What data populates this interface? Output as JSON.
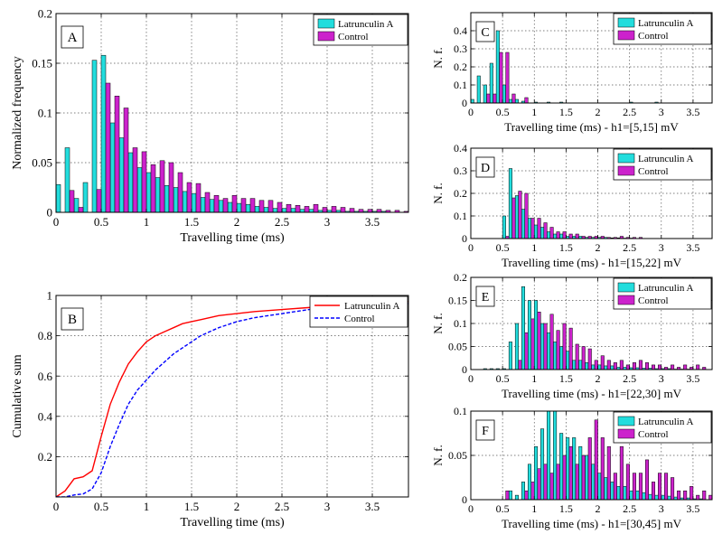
{
  "colors": {
    "latrunculin": "#22DDDD",
    "control": "#CC22CC",
    "line_latrunculin": "#FF0000",
    "line_control": "#0000FF"
  },
  "chart_data": [
    {
      "id": "A",
      "type": "bar",
      "panel_label": "A",
      "xlabel": "Travelling time (ms)",
      "ylabel": "Normalized frequency",
      "xlim": [
        0,
        3.9
      ],
      "ylim": [
        0,
        0.2
      ],
      "xticks": [
        0,
        0.5,
        1,
        1.5,
        2,
        2.5,
        3,
        3.5
      ],
      "xtick_labels": [
        "0",
        "0.5",
        "1",
        "1.5",
        "2",
        "2.5",
        "3",
        "3.5"
      ],
      "yticks": [
        0,
        0.05,
        0.1,
        0.15,
        0.2
      ],
      "ytick_labels": [
        "0",
        "0.05",
        "0.1",
        "0.15",
        "0.2"
      ],
      "legend": [
        "Latrunculin A",
        "Control"
      ],
      "bin_start": 0.05,
      "bin_width": 0.1,
      "series": [
        {
          "name": "Latrunculin A",
          "values": [
            0.028,
            0.065,
            0.014,
            0.03,
            0.153,
            0.158,
            0.09,
            0.075,
            0.06,
            0.045,
            0.04,
            0.035,
            0.027,
            0.025,
            0.021,
            0.019,
            0.015,
            0.013,
            0.012,
            0.01,
            0.009,
            0.008,
            0.006,
            0.005,
            0.004,
            0.004,
            0.004,
            0.003,
            0.003,
            0.002,
            0.002,
            0.002,
            0.001,
            0.001,
            0.001,
            0.001,
            0.001,
            0.0,
            0.0
          ]
        },
        {
          "name": "Control",
          "values": [
            0.0,
            0.022,
            0.005,
            0.0,
            0.023,
            0.13,
            0.117,
            0.105,
            0.065,
            0.061,
            0.048,
            0.052,
            0.05,
            0.04,
            0.03,
            0.029,
            0.02,
            0.017,
            0.014,
            0.017,
            0.014,
            0.014,
            0.012,
            0.012,
            0.01,
            0.008,
            0.007,
            0.006,
            0.008,
            0.005,
            0.006,
            0.005,
            0.004,
            0.003,
            0.003,
            0.003,
            0.002,
            0.002,
            0.001
          ]
        }
      ]
    },
    {
      "id": "B",
      "type": "line",
      "panel_label": "B",
      "xlabel": "Travelling time (ms)",
      "ylabel": "Cumulative sum",
      "xlim": [
        0,
        3.9
      ],
      "ylim": [
        0,
        1
      ],
      "xticks": [
        0,
        0.5,
        1,
        1.5,
        2,
        2.5,
        3,
        3.5
      ],
      "xtick_labels": [
        "0",
        "0.5",
        "1",
        "1.5",
        "2",
        "2.5",
        "3",
        "3.5"
      ],
      "yticks": [
        0.2,
        0.4,
        0.6,
        0.8,
        1
      ],
      "ytick_labels": [
        "0.2",
        "0.4",
        "0.6",
        "0.8",
        "1"
      ],
      "legend": [
        "Latrunculin A",
        "Control"
      ],
      "series": [
        {
          "name": "Latrunculin A",
          "style": "solid",
          "x": [
            0,
            0.1,
            0.2,
            0.3,
            0.4,
            0.5,
            0.6,
            0.7,
            0.8,
            0.9,
            1.0,
            1.1,
            1.2,
            1.3,
            1.4,
            1.5,
            1.6,
            1.7,
            1.8,
            2.0,
            2.2,
            2.5,
            2.8,
            3.1,
            3.5,
            3.9
          ],
          "y": [
            0.0,
            0.03,
            0.09,
            0.1,
            0.13,
            0.3,
            0.46,
            0.57,
            0.66,
            0.72,
            0.77,
            0.8,
            0.82,
            0.84,
            0.86,
            0.87,
            0.88,
            0.89,
            0.9,
            0.91,
            0.92,
            0.93,
            0.94,
            0.95,
            0.96,
            0.97
          ]
        },
        {
          "name": "Control",
          "style": "dashed",
          "x": [
            0,
            0.1,
            0.2,
            0.3,
            0.4,
            0.5,
            0.6,
            0.7,
            0.8,
            0.9,
            1.0,
            1.1,
            1.2,
            1.3,
            1.4,
            1.5,
            1.6,
            1.7,
            1.8,
            2.0,
            2.2,
            2.5,
            2.8,
            3.1,
            3.5,
            3.9
          ],
          "y": [
            0.0,
            0.0,
            0.01,
            0.015,
            0.04,
            0.12,
            0.25,
            0.36,
            0.46,
            0.53,
            0.58,
            0.63,
            0.67,
            0.71,
            0.74,
            0.77,
            0.8,
            0.82,
            0.84,
            0.87,
            0.89,
            0.91,
            0.93,
            0.94,
            0.95,
            0.96
          ]
        }
      ]
    },
    {
      "id": "C",
      "type": "bar",
      "panel_label": "C",
      "xlabel": "Travelling time (ms) - h1=[5,15] mV",
      "ylabel": "N. f.",
      "xlim": [
        0,
        3.8
      ],
      "ylim": [
        0,
        0.5
      ],
      "xticks": [
        0,
        0.5,
        1,
        1.5,
        2,
        2.5,
        3,
        3.5
      ],
      "xtick_labels": [
        "0",
        "0.5",
        "1",
        "1.5",
        "2",
        "2.5",
        "3",
        "3.5"
      ],
      "yticks": [
        0,
        0.1,
        0.2,
        0.3,
        0.4
      ],
      "ytick_labels": [
        "0",
        "0.1",
        "0.2",
        "0.3",
        "0.4"
      ],
      "legend": [
        "Latrunculin A",
        "Control"
      ],
      "bin_start": 0.05,
      "bin_width": 0.1,
      "series": [
        {
          "name": "Latrunculin A",
          "values": [
            0.02,
            0.15,
            0.1,
            0.22,
            0.4,
            0.1,
            0.02,
            0.02,
            0.01,
            0.0,
            0.005,
            0.0,
            0.005,
            0.0,
            0.005,
            0.0,
            0.0,
            0.0,
            0.0,
            0.0,
            0.0,
            0.0,
            0.0,
            0.0,
            0.0,
            0.005,
            0.0,
            0.0,
            0.0,
            0.005,
            0.0,
            0.0,
            0.0,
            0.0,
            0.0,
            0.0,
            0.0,
            0.0
          ]
        },
        {
          "name": "Control",
          "values": [
            0.0,
            0.0,
            0.05,
            0.05,
            0.28,
            0.28,
            0.05,
            0.0,
            0.03,
            0.0,
            0.0,
            0.0,
            0.0,
            0.0,
            0.0,
            0.0,
            0.0,
            0.0,
            0.0,
            0.0,
            0.0,
            0.0,
            0.0,
            0.0,
            0.0,
            0.0,
            0.0,
            0.0,
            0.0,
            0.0,
            0.0,
            0.0,
            0.0,
            0.0,
            0.0,
            0.0,
            0.0,
            0.0
          ]
        }
      ]
    },
    {
      "id": "D",
      "type": "bar",
      "panel_label": "D",
      "xlabel": "Travelling time (ms) - h1=[15,22] mV",
      "ylabel": "N. f.",
      "xlim": [
        0,
        3.8
      ],
      "ylim": [
        0,
        0.4
      ],
      "xticks": [
        0,
        0.5,
        1,
        1.5,
        2,
        2.5,
        3,
        3.5
      ],
      "xtick_labels": [
        "0",
        "0.5",
        "1",
        "1.5",
        "2",
        "2.5",
        "3",
        "3.5"
      ],
      "yticks": [
        0,
        0.1,
        0.2,
        0.3,
        0.4
      ],
      "ytick_labels": [
        "0",
        "0.1",
        "0.2",
        "0.3",
        "0.4"
      ],
      "legend": [
        "Latrunculin A",
        "Control"
      ],
      "bin_start": 0.05,
      "bin_width": 0.1,
      "series": [
        {
          "name": "Latrunculin A",
          "values": [
            0.0,
            0.0,
            0.0,
            0.0,
            0.0,
            0.1,
            0.31,
            0.19,
            0.13,
            0.09,
            0.06,
            0.05,
            0.03,
            0.02,
            0.02,
            0.01,
            0.01,
            0.01,
            0.005,
            0.005,
            0.005,
            0.005,
            0.003,
            0.003,
            0.002,
            0.002,
            0.0,
            0.0,
            0.0,
            0.0,
            0.0,
            0.0,
            0.0,
            0.0,
            0.0,
            0.0,
            0.0,
            0.0
          ]
        },
        {
          "name": "Control",
          "values": [
            0.0,
            0.0,
            0.0,
            0.0,
            0.0,
            0.01,
            0.18,
            0.21,
            0.2,
            0.09,
            0.09,
            0.07,
            0.05,
            0.03,
            0.03,
            0.02,
            0.02,
            0.01,
            0.01,
            0.01,
            0.01,
            0.005,
            0.005,
            0.01,
            0.005,
            0.005,
            0.005,
            0.0,
            0.0,
            0.0,
            0.0,
            0.0,
            0.0,
            0.0,
            0.0,
            0.0,
            0.0,
            0.0
          ]
        }
      ]
    },
    {
      "id": "E",
      "type": "bar",
      "panel_label": "E",
      "xlabel": "Travelling time (ms) - h1=[22,30] mV",
      "ylabel": "N. f.",
      "xlim": [
        0,
        3.8
      ],
      "ylim": [
        0,
        0.2
      ],
      "xticks": [
        0,
        0.5,
        1,
        1.5,
        2,
        2.5,
        3,
        3.5
      ],
      "xtick_labels": [
        "0",
        "0.5",
        "1",
        "1.5",
        "2",
        "2.5",
        "3",
        "3.5"
      ],
      "yticks": [
        0,
        0.05,
        0.1,
        0.15,
        0.2
      ],
      "ytick_labels": [
        "0",
        "0.05",
        "0.1",
        "0.15",
        "0.2"
      ],
      "legend": [
        "Latrunculin A",
        "Control"
      ],
      "bin_start": 0.05,
      "bin_width": 0.1,
      "series": [
        {
          "name": "Latrunculin A",
          "values": [
            0.0,
            0.0,
            0.002,
            0.002,
            0.002,
            0.002,
            0.06,
            0.1,
            0.18,
            0.15,
            0.15,
            0.1,
            0.08,
            0.06,
            0.05,
            0.04,
            0.02,
            0.02,
            0.015,
            0.01,
            0.01,
            0.008,
            0.008,
            0.005,
            0.005,
            0.004,
            0.004,
            0.003,
            0.003,
            0.002,
            0.002,
            0.002,
            0.001,
            0.001,
            0.001,
            0.0,
            0.0,
            0.0
          ]
        },
        {
          "name": "Control",
          "values": [
            0.0,
            0.0,
            0.0,
            0.0,
            0.0,
            0.0,
            0.0,
            0.02,
            0.08,
            0.11,
            0.125,
            0.1,
            0.12,
            0.085,
            0.1,
            0.09,
            0.055,
            0.05,
            0.045,
            0.02,
            0.03,
            0.02,
            0.015,
            0.02,
            0.01,
            0.015,
            0.02,
            0.015,
            0.01,
            0.01,
            0.005,
            0.01,
            0.005,
            0.01,
            0.005,
            0.01,
            0.005,
            0.0
          ]
        }
      ]
    },
    {
      "id": "F",
      "type": "bar",
      "panel_label": "F",
      "xlabel": "Travelling time (ms) - h1=[30,45] mV",
      "ylabel": "N. f.",
      "xlim": [
        0,
        3.8
      ],
      "ylim": [
        0,
        0.1
      ],
      "xticks": [
        0,
        0.5,
        1,
        1.5,
        2,
        2.5,
        3,
        3.5
      ],
      "xtick_labels": [
        "0",
        "0.5",
        "1",
        "1.5",
        "2",
        "2.5",
        "3",
        "3.5"
      ],
      "yticks": [
        0,
        0.05,
        0.1
      ],
      "ytick_labels": [
        "0",
        "0.05",
        "0.1"
      ],
      "legend": [
        "Latrunculin A",
        "Control"
      ],
      "bin_start": 0.05,
      "bin_width": 0.1,
      "series": [
        {
          "name": "Latrunculin A",
          "values": [
            0.0,
            0.0,
            0.0,
            0.0,
            0.0,
            0.0,
            0.01,
            0.005,
            0.02,
            0.04,
            0.06,
            0.08,
            0.1,
            0.1,
            0.075,
            0.07,
            0.07,
            0.06,
            0.05,
            0.04,
            0.03,
            0.025,
            0.02,
            0.015,
            0.015,
            0.01,
            0.01,
            0.008,
            0.006,
            0.005,
            0.005,
            0.004,
            0.003,
            0.002,
            0.002,
            0.001,
            0.001,
            0.0
          ]
        },
        {
          "name": "Control",
          "values": [
            0.0,
            0.0,
            0.0,
            0.0,
            0.0,
            0.01,
            0.0,
            0.0,
            0.01,
            0.02,
            0.035,
            0.04,
            0.03,
            0.04,
            0.05,
            0.06,
            0.04,
            0.05,
            0.07,
            0.09,
            0.07,
            0.06,
            0.03,
            0.06,
            0.04,
            0.03,
            0.03,
            0.045,
            0.02,
            0.03,
            0.03,
            0.025,
            0.01,
            0.01,
            0.015,
            0.005,
            0.01,
            0.005
          ]
        }
      ]
    }
  ]
}
